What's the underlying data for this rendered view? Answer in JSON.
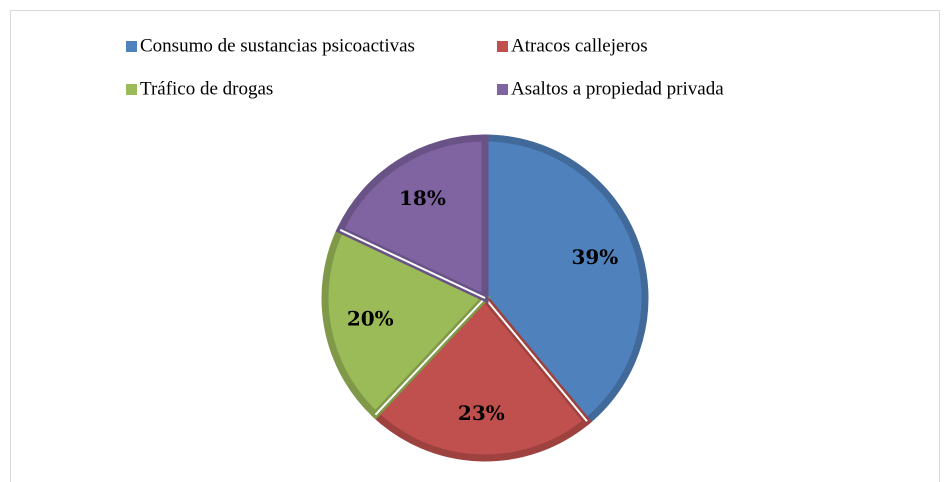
{
  "chart_data": {
    "type": "pie",
    "categories": [
      "Consumo de sustancias psicoactivas",
      "Atracos callejeros",
      "Tráfico de drogas",
      "Asaltos a propiedad privada"
    ],
    "values": [
      39,
      23,
      20,
      18
    ],
    "value_labels": [
      "39%",
      "23%",
      "20%",
      "18%"
    ],
    "colors": [
      "#4f81bd",
      "#c0504d",
      "#9bbb59",
      "#8064a2"
    ],
    "legend": "top"
  }
}
